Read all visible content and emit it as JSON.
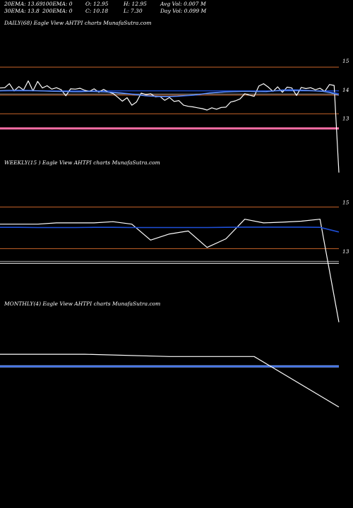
{
  "header": {
    "row1": {
      "ema20": "20EMA: 13.69",
      "ema100": "100EMA: 0",
      "open": "O: 12.95",
      "high": "H: 12.95",
      "avg_vol": "Avg Vol: 0.007 M"
    },
    "row2": {
      "ema30": "30EMA: 13.8",
      "ema200": "200EMA: 0",
      "close": "C: 10.18",
      "low": "L: 7.30",
      "day_vol": "Day Vol: 0.099 M"
    }
  },
  "colors": {
    "background": "#000000",
    "price": "#ffffff",
    "ema_blue": "#1e4fd8",
    "ema_light": "#7aa7ff",
    "orange": "#c8642a",
    "pink": "#ff6fa8",
    "gray": "#8a8a8a"
  },
  "chart_data": [
    {
      "id": "daily",
      "type": "line",
      "title": "DAILY(68) Eagle  View  AHTPI charts MunafaSutra.com",
      "ylim": [
        12.0,
        15.2
      ],
      "yticks": [
        {
          "value": 15,
          "label": "15"
        },
        {
          "value": 14,
          "label": "14"
        },
        {
          "value": 13,
          "label": "13"
        }
      ],
      "hlines": [
        {
          "name": "orange",
          "value": 14.78,
          "color": "#c8642a",
          "width": 1
        },
        {
          "name": "blue",
          "value": 13.95,
          "color": "#1e4fd8",
          "width": 1.2
        },
        {
          "name": "gray",
          "value": 13.84,
          "color": "#8a8a8a",
          "width": 1
        },
        {
          "name": "orange",
          "value": 13.8,
          "color": "#c8642a",
          "width": 1
        },
        {
          "name": "orange",
          "value": 13.15,
          "color": "#c8642a",
          "width": 1
        },
        {
          "name": "pink",
          "value": 12.64,
          "color": "#ff6fa8",
          "width": 3
        }
      ],
      "series": [
        {
          "color": "#ffffff",
          "width": 1.2,
          "values": [
            14.05,
            14.06,
            14.2,
            13.95,
            14.1,
            13.98,
            14.3,
            13.95,
            14.28,
            14.05,
            14.13,
            14.01,
            14.06,
            13.99,
            13.78,
            14.02,
            14.01,
            14.04,
            13.97,
            13.93,
            14.02,
            13.9,
            14.0,
            13.91,
            13.86,
            13.73,
            13.59,
            13.71,
            13.45,
            13.56,
            13.87,
            13.82,
            13.85,
            13.74,
            13.75,
            13.62,
            13.72,
            13.58,
            13.61,
            13.45,
            13.41,
            13.39,
            13.36,
            13.33,
            13.28,
            13.36,
            13.31,
            13.37,
            13.38,
            13.56,
            13.6,
            13.67,
            13.85,
            13.8,
            13.76,
            14.12,
            14.2,
            14.08,
            13.93,
            14.09,
            13.9,
            14.08,
            14.05,
            13.79,
            14.07,
            14.03,
            14.06,
            13.99,
            14.04,
            13.93,
            14.17,
            14.14,
            11.1
          ]
        },
        {
          "color": "#1e4fd8",
          "width": 1.6,
          "values": [
            13.95,
            13.96,
            13.97,
            13.97,
            13.96,
            13.95,
            13.95,
            13.94,
            13.93,
            13.92,
            13.92,
            13.93,
            13.93,
            13.92,
            13.9,
            13.88,
            13.85,
            13.82,
            13.78,
            13.76,
            13.75,
            13.75,
            13.76,
            13.78,
            13.8,
            13.84,
            13.88,
            13.9,
            13.92,
            13.93,
            13.94,
            13.94,
            13.93,
            13.92,
            13.95,
            13.98,
            13.99,
            13.98,
            13.97,
            13.95,
            13.94,
            13.9,
            13.85
          ]
        },
        {
          "color": "#7aa7ff",
          "width": 1,
          "values": [
            13.96,
            13.97,
            13.97,
            13.96,
            13.96,
            13.95,
            13.94,
            13.93,
            13.93,
            13.92,
            13.92,
            13.93,
            13.92,
            13.91,
            13.89,
            13.87,
            13.84,
            13.81,
            13.78,
            13.77,
            13.76,
            13.76,
            13.77,
            13.79,
            13.81,
            13.84,
            13.87,
            13.89,
            13.91,
            13.92,
            13.93,
            13.93,
            13.92,
            13.93,
            13.95,
            13.97,
            13.97,
            13.97,
            13.96,
            13.95,
            13.93,
            13.88,
            13.8
          ]
        }
      ]
    },
    {
      "id": "weekly",
      "type": "line",
      "title": "WEEKLY(15                                    ) Eagle  View  AHTPI charts MunafaSutra.com",
      "ylim": [
        11.5,
        15.3
      ],
      "yticks": [
        {
          "value": 15,
          "label": "15"
        },
        {
          "value": 13,
          "label": "13"
        }
      ],
      "hlines": [
        {
          "name": "orange",
          "value": 14.8,
          "color": "#c8642a",
          "width": 1
        },
        {
          "name": "orange",
          "value": 13.1,
          "color": "#c8642a",
          "width": 1
        },
        {
          "name": "gray",
          "value": 12.58,
          "color": "#8a8a8a",
          "width": 1.2
        },
        {
          "name": "white",
          "value": 12.5,
          "color": "#ffffff",
          "width": 1
        }
      ],
      "series": [
        {
          "color": "#ffffff",
          "width": 1.2,
          "values": [
            14.1,
            14.1,
            14.1,
            14.15,
            14.15,
            14.15,
            14.2,
            14.1,
            13.45,
            13.7,
            13.82,
            13.15,
            13.5,
            14.3,
            14.15,
            14.18,
            14.22,
            14.3,
            10.1
          ]
        },
        {
          "color": "#1e4fd8",
          "width": 1.6,
          "values": [
            13.97,
            13.97,
            13.96,
            13.96,
            13.96,
            13.97,
            13.97,
            13.96,
            13.96,
            13.96,
            13.96,
            13.96,
            13.97,
            13.98,
            13.98,
            13.98,
            13.98,
            13.97,
            13.78
          ]
        }
      ]
    },
    {
      "id": "monthly",
      "type": "line",
      "title": "MONTHLY(4) Eagle  View  AHTPI charts MunafaSutra.com",
      "ylim": [
        8.3,
        15.5
      ],
      "yticks": [],
      "hlines": [
        {
          "name": "blue-light",
          "value": 13.2,
          "color": "#7aa7ff",
          "width": 3
        },
        {
          "name": "blue",
          "value": 13.2,
          "color": "#1e4fd8",
          "width": 1
        }
      ],
      "series": [
        {
          "color": "#ffffff",
          "width": 1.2,
          "values": [
            14.0,
            14.0,
            13.85,
            13.85,
            10.5
          ]
        }
      ]
    }
  ]
}
